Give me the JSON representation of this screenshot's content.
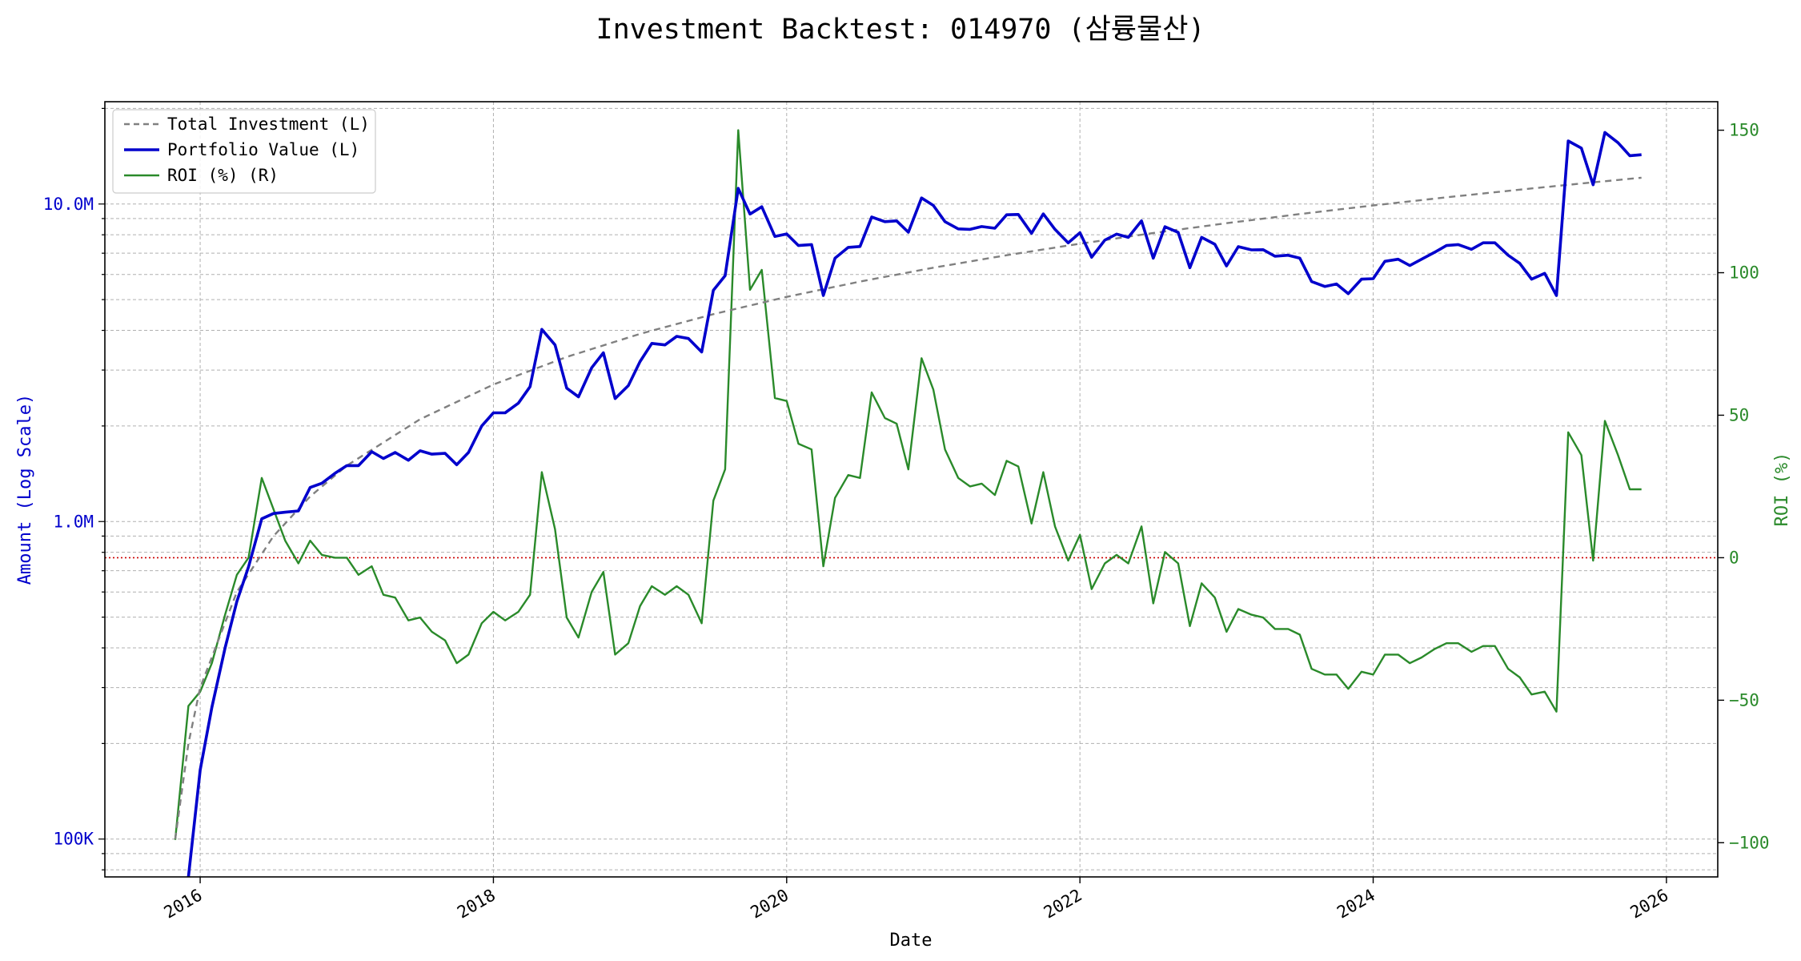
{
  "chart_data": {
    "type": "line",
    "title": "Investment Backtest: 014970 (삼륭물산)",
    "xlabel": "Date",
    "ylabel_left": "Amount (Log Scale)",
    "ylabel_right": "ROI (%)",
    "x_ticks": [
      "2016",
      "2018",
      "2020",
      "2022",
      "2024",
      "2026"
    ],
    "y_left_ticks": [
      {
        "value": 100000,
        "label": "100K"
      },
      {
        "value": 1000000,
        "label": "1.0M"
      },
      {
        "value": 10000000,
        "label": "10.0M"
      }
    ],
    "y_right_ticks": [
      {
        "value": -100,
        "label": "−100"
      },
      {
        "value": -50,
        "label": "−50"
      },
      {
        "value": 0,
        "label": "0"
      },
      {
        "value": 50,
        "label": "50"
      },
      {
        "value": 100,
        "label": "100"
      },
      {
        "value": 150,
        "label": "150"
      }
    ],
    "y_left_scale": "log",
    "y_left_range": [
      76000,
      21000000
    ],
    "y_right_range": [
      -112,
      160
    ],
    "x_range": [
      2015.35,
      2026.35
    ],
    "grid": true,
    "legend_position": "top-left",
    "reference_line": {
      "axis": "right",
      "value": 0,
      "style": "dotted",
      "color": "#cc0000"
    },
    "series": [
      {
        "name": "Total Investment (L)",
        "axis": "left",
        "style": "dashed",
        "color": "#808080",
        "x": [
          2015.83,
          2015.92,
          2016.0,
          2016.25,
          2016.5,
          2016.75,
          2017.0,
          2017.5,
          2018.0,
          2018.5,
          2019.0,
          2019.5,
          2020.0,
          2020.5,
          2021.0,
          2021.5,
          2022.0,
          2022.5,
          2023.0,
          2023.5,
          2024.0,
          2024.5,
          2025.0,
          2025.5,
          2025.83
        ],
        "y": [
          100000,
          200000,
          300000,
          600000,
          900000,
          1200000,
          1500000,
          2100000,
          2700000,
          3300000,
          3900000,
          4500000,
          5100000,
          5700000,
          6300000,
          6900000,
          7500000,
          8100000,
          8700000,
          9300000,
          9900000,
          10500000,
          11100000,
          11700000,
          12100000
        ]
      },
      {
        "name": "Portfolio Value (L)",
        "axis": "left",
        "style": "solid",
        "color": "#0000cc",
        "x": [
          2015.92,
          2016.0,
          2016.08,
          2016.17,
          2016.25,
          2016.33,
          2016.42,
          2016.5,
          2016.58,
          2016.67,
          2016.75,
          2016.83,
          2016.92,
          2017.0,
          2017.08,
          2017.17,
          2017.25,
          2017.33,
          2017.42,
          2017.5,
          2017.58,
          2017.67,
          2017.75,
          2017.83,
          2017.92,
          2018.0,
          2018.08,
          2018.17,
          2018.25,
          2018.33,
          2018.42,
          2018.5,
          2018.58,
          2018.67,
          2018.75,
          2018.83,
          2018.92,
          2019.0,
          2019.08,
          2019.17,
          2019.25,
          2019.33,
          2019.42,
          2019.5,
          2019.58,
          2019.67,
          2019.75,
          2019.83,
          2019.92,
          2020.0,
          2020.08,
          2020.17,
          2020.25,
          2020.33,
          2020.42,
          2020.5,
          2020.58,
          2020.67,
          2020.75,
          2020.83,
          2020.92,
          2021.0,
          2021.08,
          2021.17,
          2021.25,
          2021.33,
          2021.42,
          2021.5,
          2021.58,
          2021.67,
          2021.75,
          2021.83,
          2021.92,
          2022.0,
          2022.08,
          2022.17,
          2022.25,
          2022.33,
          2022.42,
          2022.5,
          2022.58,
          2022.67,
          2022.75,
          2022.83,
          2022.92,
          2023.0,
          2023.08,
          2023.17,
          2023.25,
          2023.33,
          2023.42,
          2023.5,
          2023.58,
          2023.67,
          2023.75,
          2023.83,
          2023.92,
          2024.0,
          2024.08,
          2024.17,
          2024.25,
          2024.33,
          2024.42,
          2024.5,
          2024.58,
          2024.67,
          2024.75,
          2024.83,
          2024.92,
          2025.0,
          2025.08,
          2025.17,
          2025.25,
          2025.33,
          2025.42,
          2025.5,
          2025.58,
          2025.67,
          2025.75,
          2025.83
        ],
        "y": [
          76000,
          165000,
          260000,
          400000,
          560000,
          720000,
          1020000,
          1060000,
          1070000,
          1080000,
          1280000,
          1320000,
          1420000,
          1500000,
          1500000,
          1660000,
          1580000,
          1650000,
          1560000,
          1670000,
          1630000,
          1640000,
          1510000,
          1650000,
          2000000,
          2200000,
          2200000,
          2360000,
          2660000,
          4030000,
          3600000,
          2630000,
          2470000,
          3050000,
          3400000,
          2440000,
          2680000,
          3190000,
          3640000,
          3600000,
          3830000,
          3770000,
          3420000,
          5350000,
          5950000,
          11200000,
          9300000,
          9800000,
          7900000,
          8050000,
          7400000,
          7450000,
          5150000,
          6750000,
          7300000,
          7350000,
          9100000,
          8800000,
          8850000,
          8150000,
          10450000,
          9900000,
          8800000,
          8350000,
          8320000,
          8490000,
          8390000,
          9250000,
          9270000,
          8090000,
          9310000,
          8320000,
          7550000,
          8120000,
          6800000,
          7700000,
          8040000,
          7850000,
          8850000,
          6750000,
          8480000,
          8140000,
          6300000,
          7850000,
          7470000,
          6380000,
          7340000,
          7170000,
          7180000,
          6850000,
          6900000,
          6750000,
          5700000,
          5500000,
          5600000,
          5220000,
          5800000,
          5820000,
          6600000,
          6700000,
          6400000,
          6700000,
          7050000,
          7400000,
          7450000,
          7200000,
          7550000,
          7550000,
          6900000,
          6500000,
          5800000,
          6050000,
          5150000,
          15800000,
          15000000,
          11500000,
          16800000,
          15600000,
          14200000,
          14300000
        ]
      },
      {
        "name": "ROI (%) (R)",
        "axis": "right",
        "style": "solid",
        "color": "#2a8a2a",
        "x": [
          2015.83,
          2015.92,
          2016.0,
          2016.08,
          2016.17,
          2016.25,
          2016.33,
          2016.42,
          2016.5,
          2016.58,
          2016.67,
          2016.75,
          2016.83,
          2016.92,
          2017.0,
          2017.08,
          2017.17,
          2017.25,
          2017.33,
          2017.42,
          2017.5,
          2017.58,
          2017.67,
          2017.75,
          2017.83,
          2017.92,
          2018.0,
          2018.08,
          2018.17,
          2018.25,
          2018.33,
          2018.42,
          2018.5,
          2018.58,
          2018.67,
          2018.75,
          2018.83,
          2018.92,
          2019.0,
          2019.08,
          2019.17,
          2019.25,
          2019.33,
          2019.42,
          2019.5,
          2019.58,
          2019.67,
          2019.75,
          2019.83,
          2019.92,
          2020.0,
          2020.08,
          2020.17,
          2020.25,
          2020.33,
          2020.42,
          2020.5,
          2020.58,
          2020.67,
          2020.75,
          2020.83,
          2020.92,
          2021.0,
          2021.08,
          2021.17,
          2021.25,
          2021.33,
          2021.42,
          2021.5,
          2021.58,
          2021.67,
          2021.75,
          2021.83,
          2021.92,
          2022.0,
          2022.08,
          2022.17,
          2022.25,
          2022.33,
          2022.42,
          2022.5,
          2022.58,
          2022.67,
          2022.75,
          2022.83,
          2022.92,
          2023.0,
          2023.08,
          2023.17,
          2023.25,
          2023.33,
          2023.42,
          2023.5,
          2023.58,
          2023.67,
          2023.75,
          2023.83,
          2023.92,
          2024.0,
          2024.08,
          2024.17,
          2024.25,
          2024.33,
          2024.42,
          2024.5,
          2024.58,
          2024.67,
          2024.75,
          2024.83,
          2024.92,
          2025.0,
          2025.08,
          2025.17,
          2025.25,
          2025.33,
          2025.42,
          2025.5,
          2025.58,
          2025.67,
          2025.75,
          2025.83
        ],
        "y": [
          -99,
          -52,
          -47,
          -37,
          -20,
          -6,
          0,
          28,
          17,
          6,
          -2,
          6,
          1,
          0,
          0,
          -6,
          -3,
          -13,
          -14,
          -22,
          -21,
          -26,
          -29,
          -37,
          -34,
          -23,
          -19,
          -22,
          -19,
          -13,
          30,
          10,
          -21,
          -28,
          -12,
          -5,
          -34,
          -30,
          -17,
          -10,
          -13,
          -10,
          -13,
          -23,
          20,
          31,
          150,
          94,
          101,
          56,
          55,
          40,
          38,
          -3,
          21,
          29,
          28,
          58,
          49,
          47,
          31,
          70,
          59,
          38,
          28,
          25,
          26,
          22,
          34,
          32,
          12,
          30,
          11,
          -1,
          8,
          -11,
          -2,
          1,
          -2,
          11,
          -16,
          2,
          -2,
          -24,
          -9,
          -14,
          -26,
          -18,
          -20,
          -21,
          -25,
          -25,
          -27,
          -39,
          -41,
          -41,
          -46,
          -40,
          -41,
          -34,
          -34,
          -37,
          -35,
          -32,
          -30,
          -30,
          -33,
          -31,
          -31,
          -39,
          -42,
          -48,
          -47,
          -54,
          44,
          36,
          -1,
          48,
          36,
          24,
          24
        ]
      }
    ]
  }
}
